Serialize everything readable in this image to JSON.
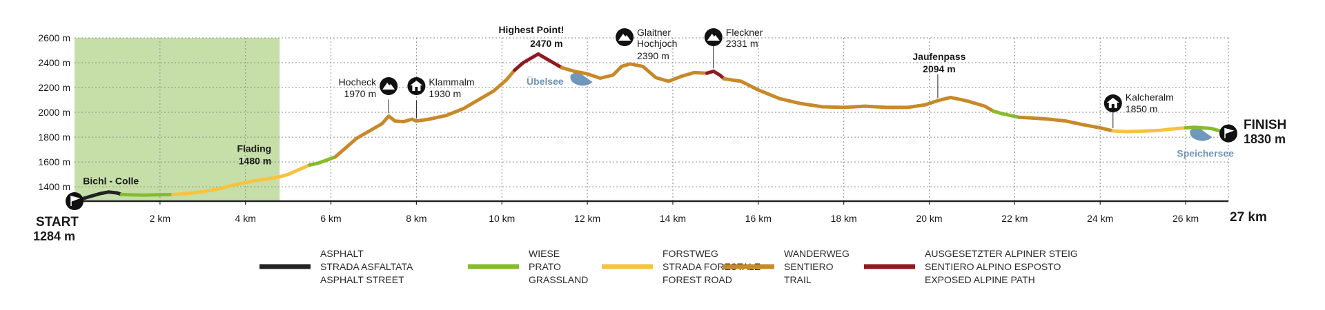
{
  "chart_data": {
    "type": "area",
    "title": "",
    "xlabel": "",
    "ylabel": "",
    "x_unit": "km",
    "y_unit": "m",
    "xlim": [
      0,
      27
    ],
    "ylim": [
      1284,
      2600
    ],
    "x_ticks": [
      {
        "value": 2,
        "label": "2 km"
      },
      {
        "value": 4,
        "label": "4 km"
      },
      {
        "value": 6,
        "label": "6 km"
      },
      {
        "value": 8,
        "label": "8 km"
      },
      {
        "value": 10,
        "label": "10 km"
      },
      {
        "value": 12,
        "label": "12 km"
      },
      {
        "value": 14,
        "label": "14 km"
      },
      {
        "value": 16,
        "label": "16 km"
      },
      {
        "value": 18,
        "label": "18 km"
      },
      {
        "value": 20,
        "label": "20 km"
      },
      {
        "value": 22,
        "label": "22 km"
      },
      {
        "value": 24,
        "label": "24 km"
      },
      {
        "value": 26,
        "label": "26 km"
      }
    ],
    "y_ticks": [
      {
        "value": 1400,
        "label": "1400 m"
      },
      {
        "value": 1600,
        "label": "1600 m"
      },
      {
        "value": 1800,
        "label": "1800 m"
      },
      {
        "value": 2000,
        "label": "2000 m"
      },
      {
        "value": 2200,
        "label": "2200 m"
      },
      {
        "value": 2400,
        "label": "2400 m"
      },
      {
        "value": 2600,
        "label": "2600 m"
      }
    ],
    "grid": true,
    "highlight_region": {
      "x": [
        0,
        4.8
      ],
      "color": "#c6dfa9"
    },
    "surface_colors": {
      "asphalt": "#222222",
      "grassland": "#86bc2b",
      "forest_road": "#f6c340",
      "trail": "#c7892a",
      "exposed": "#8e1a22"
    },
    "profile": [
      [
        0,
        1284
      ],
      [
        0.3,
        1315
      ],
      [
        0.6,
        1345
      ],
      [
        0.8,
        1358
      ],
      [
        1.0,
        1350
      ],
      [
        1.1,
        1338
      ],
      [
        1.3,
        1335
      ],
      [
        1.6,
        1333
      ],
      [
        2.0,
        1336
      ],
      [
        2.3,
        1337
      ],
      [
        2.6,
        1345
      ],
      [
        3.0,
        1360
      ],
      [
        3.4,
        1385
      ],
      [
        3.8,
        1420
      ],
      [
        4.2,
        1448
      ],
      [
        4.6,
        1468
      ],
      [
        4.8,
        1480
      ],
      [
        5.0,
        1500
      ],
      [
        5.3,
        1545
      ],
      [
        5.5,
        1575
      ],
      [
        5.7,
        1590
      ],
      [
        5.9,
        1615
      ],
      [
        6.1,
        1640
      ],
      [
        6.3,
        1700
      ],
      [
        6.6,
        1790
      ],
      [
        6.9,
        1850
      ],
      [
        7.2,
        1910
      ],
      [
        7.35,
        1970
      ],
      [
        7.5,
        1930
      ],
      [
        7.7,
        1925
      ],
      [
        7.9,
        1945
      ],
      [
        8.0,
        1930
      ],
      [
        8.3,
        1945
      ],
      [
        8.7,
        1975
      ],
      [
        9.1,
        2030
      ],
      [
        9.5,
        2110
      ],
      [
        9.8,
        2170
      ],
      [
        10.1,
        2260
      ],
      [
        10.3,
        2340
      ],
      [
        10.5,
        2400
      ],
      [
        10.7,
        2440
      ],
      [
        10.85,
        2470
      ],
      [
        11.0,
        2440
      ],
      [
        11.2,
        2400
      ],
      [
        11.4,
        2360
      ],
      [
        11.7,
        2330
      ],
      [
        12.0,
        2310
      ],
      [
        12.3,
        2275
      ],
      [
        12.6,
        2300
      ],
      [
        12.8,
        2370
      ],
      [
        13.0,
        2390
      ],
      [
        13.3,
        2370
      ],
      [
        13.6,
        2280
      ],
      [
        13.9,
        2250
      ],
      [
        14.2,
        2290
      ],
      [
        14.5,
        2320
      ],
      [
        14.8,
        2315
      ],
      [
        14.95,
        2331
      ],
      [
        15.1,
        2300
      ],
      [
        15.2,
        2270
      ],
      [
        15.6,
        2250
      ],
      [
        16.0,
        2180
      ],
      [
        16.5,
        2110
      ],
      [
        17.0,
        2070
      ],
      [
        17.5,
        2045
      ],
      [
        18.0,
        2040
      ],
      [
        18.5,
        2050
      ],
      [
        19.0,
        2040
      ],
      [
        19.5,
        2040
      ],
      [
        19.9,
        2060
      ],
      [
        20.2,
        2094
      ],
      [
        20.5,
        2120
      ],
      [
        20.9,
        2090
      ],
      [
        21.3,
        2050
      ],
      [
        21.5,
        2010
      ],
      [
        21.7,
        1990
      ],
      [
        21.9,
        1975
      ],
      [
        22.1,
        1960
      ],
      [
        22.4,
        1955
      ],
      [
        22.8,
        1945
      ],
      [
        23.2,
        1930
      ],
      [
        23.6,
        1900
      ],
      [
        24.0,
        1875
      ],
      [
        24.3,
        1850
      ],
      [
        24.6,
        1845
      ],
      [
        25.0,
        1848
      ],
      [
        25.4,
        1855
      ],
      [
        25.8,
        1870
      ],
      [
        26.0,
        1875
      ],
      [
        26.2,
        1880
      ],
      [
        26.6,
        1870
      ],
      [
        27.0,
        1830
      ]
    ],
    "segments": [
      {
        "surface": "asphalt",
        "x": [
          0,
          1.1
        ]
      },
      {
        "surface": "grassland",
        "x": [
          1.1,
          2.3
        ]
      },
      {
        "surface": "forest_road",
        "x": [
          2.3,
          5.5
        ]
      },
      {
        "surface": "grassland",
        "x": [
          5.5,
          6.1
        ]
      },
      {
        "surface": "trail",
        "x": [
          6.1,
          10.3
        ]
      },
      {
        "surface": "exposed",
        "x": [
          10.3,
          11.4
        ]
      },
      {
        "surface": "trail",
        "x": [
          11.4,
          14.8
        ]
      },
      {
        "surface": "exposed",
        "x": [
          14.8,
          15.2
        ]
      },
      {
        "surface": "trail",
        "x": [
          15.2,
          21.5
        ]
      },
      {
        "surface": "grassland",
        "x": [
          21.5,
          22.1
        ]
      },
      {
        "surface": "trail",
        "x": [
          22.1,
          24.3
        ]
      },
      {
        "surface": "forest_road",
        "x": [
          24.3,
          26.0
        ]
      },
      {
        "surface": "grassland",
        "x": [
          26.0,
          27.0
        ]
      }
    ],
    "start": {
      "label": "START",
      "elevation": "1284 m",
      "x": 0,
      "y": 1284
    },
    "finish": {
      "label": "FINISH",
      "elevation": "1830 m",
      "x": 27,
      "y": 1830,
      "distance": "27 km"
    },
    "waypoints": [
      {
        "name": "Bichl - Colle",
        "elevation": "",
        "x": 0.9,
        "y": 1358,
        "icon": "none",
        "bold": true
      },
      {
        "name": "Flading",
        "elevation": "1480 m",
        "x": 4.8,
        "y": 1480,
        "icon": "none",
        "bold": true
      },
      {
        "name": "Hocheck",
        "elevation": "1970 m",
        "x": 7.35,
        "y": 1970,
        "icon": "mountain-icon",
        "bold": false
      },
      {
        "name": "Klammalm",
        "elevation": "1930 m",
        "x": 8.0,
        "y": 1930,
        "icon": "hut-icon",
        "bold": false
      },
      {
        "name": "Highest Point!",
        "elevation": "2470 m",
        "x": 10.85,
        "y": 2470,
        "icon": "none",
        "bold": true
      },
      {
        "name": "Glaitner",
        "name2": "Hochjoch",
        "elevation": "2390 m",
        "x": 13.0,
        "y": 2390,
        "icon": "mountain-icon",
        "bold": false
      },
      {
        "name": "Fleckner",
        "elevation": "2331 m",
        "x": 14.95,
        "y": 2331,
        "icon": "mountain-icon",
        "bold": false
      },
      {
        "name": "Jaufenpass",
        "elevation": "2094 m",
        "x": 20.2,
        "y": 2094,
        "icon": "none",
        "bold": true
      },
      {
        "name": "Kalcheralm",
        "elevation": "1850 m",
        "x": 24.3,
        "y": 1850,
        "icon": "hut-icon",
        "bold": false
      }
    ],
    "lakes": [
      {
        "name": "Übelsee",
        "x": 11.8,
        "y": 2255
      },
      {
        "name": "Speichersee",
        "x": 26.3,
        "y": 1810
      }
    ],
    "legend": [
      {
        "surface": "asphalt",
        "lines": [
          "ASPHALT",
          "STRADA ASFALTATA",
          "ASPHALT STREET"
        ]
      },
      {
        "surface": "grassland",
        "lines": [
          "WIESE",
          "PRATO",
          "GRASSLAND"
        ]
      },
      {
        "surface": "forest_road",
        "lines": [
          "FORSTWEG",
          "STRADA FORESTALE",
          "FOREST ROAD"
        ]
      },
      {
        "surface": "trail",
        "lines": [
          "WANDERWEG",
          "SENTIERO",
          "TRAIL"
        ]
      },
      {
        "surface": "exposed",
        "lines": [
          "AUSGESETZTER ALPINER STEIG",
          "SENTIERO ALPINO ESPOSTO",
          "EXPOSED ALPINE PATH"
        ]
      }
    ],
    "legend_position": "bottom"
  }
}
